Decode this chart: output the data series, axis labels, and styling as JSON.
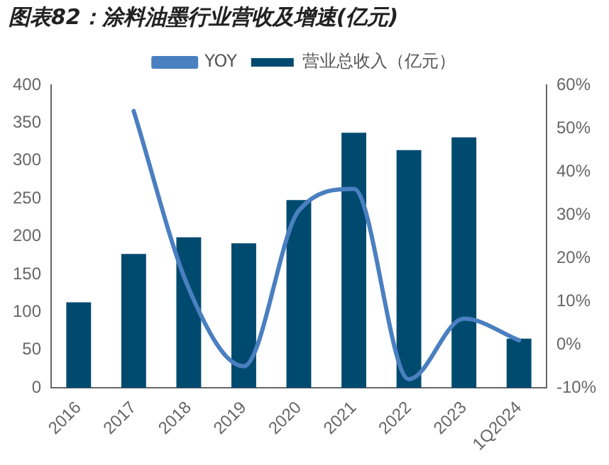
{
  "chart_data": {
    "type": "bar",
    "title": "图表82：涂料油墨行业营收及增速(亿元)",
    "categories": [
      "2016",
      "2017",
      "2018",
      "2019",
      "2020",
      "2021",
      "2022",
      "2023",
      "1Q2024"
    ],
    "series": [
      {
        "name": "营业总收入（亿元）",
        "color": "#004a70",
        "values": [
          113,
          177,
          199,
          191,
          248,
          337,
          314,
          331,
          65
        ]
      },
      {
        "name": "YOY",
        "type": "line",
        "axis": "y2",
        "color": "#4a7fc0",
        "values": [
          null,
          54,
          13,
          -5,
          31,
          36,
          -8,
          6,
          1
        ]
      }
    ],
    "ylim": [
      0,
      400
    ],
    "yticks": [
      0,
      50,
      100,
      150,
      200,
      250,
      300,
      350,
      400
    ],
    "y2lim": [
      -10,
      60
    ],
    "y2ticks": [
      {
        "value": -10,
        "label": "-10%"
      },
      {
        "value": 0,
        "label": "0%"
      },
      {
        "value": 10,
        "label": "10%"
      },
      {
        "value": 20,
        "label": "20%"
      },
      {
        "value": 30,
        "label": "30%"
      },
      {
        "value": 40,
        "label": "40%"
      },
      {
        "value": 50,
        "label": "50%"
      },
      {
        "value": 60,
        "label": "60%"
      }
    ],
    "grid": false,
    "legend": "top",
    "marker": "none"
  }
}
